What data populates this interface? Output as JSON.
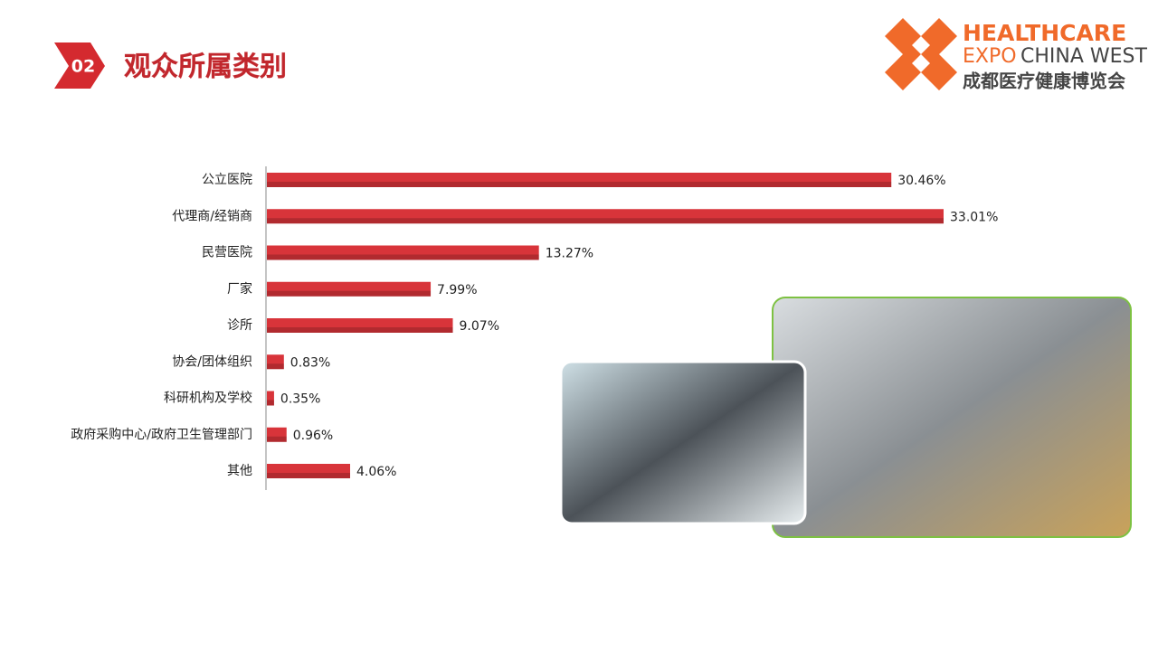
{
  "header": {
    "number": "02",
    "title": "观众所属类别"
  },
  "logo": {
    "brand": "HEALTHCARE",
    "expo": "EXPO",
    "region": "CHINA WEST",
    "chinese": "成都医疗健康博览会"
  },
  "chart_data": {
    "type": "bar",
    "categories": [
      "公立医院",
      "代理商/经销商",
      "民营医院",
      "厂家",
      "诊所",
      "协会/团体组织",
      "科研机构及学校",
      "政府采购中心/政府卫生管理部门",
      "其他"
    ],
    "values": [
      30.46,
      33.01,
      13.27,
      7.99,
      9.07,
      0.83,
      0.35,
      0.96,
      4.06
    ],
    "value_labels": [
      "30.46%",
      "33.01%",
      "13.27%",
      "7.99%",
      "9.07%",
      "0.83%",
      "0.35%",
      "0.96%",
      "4.06%"
    ],
    "color": "#d8343a"
  }
}
